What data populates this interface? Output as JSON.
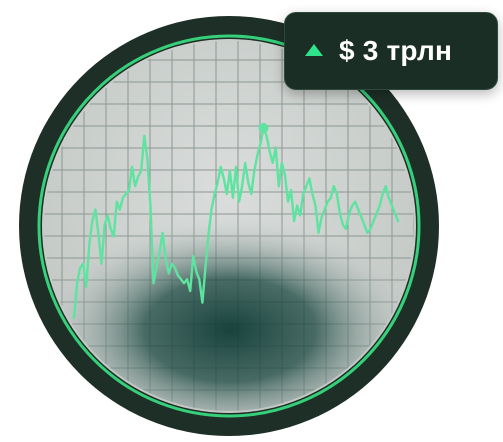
{
  "badge": {
    "value_text": "$ 3 трлн",
    "trend_icon": "triangle-up-icon",
    "trend_color": "#2ee38a"
  },
  "colors": {
    "ring": "#1e2f27",
    "ring_accent": "#36d07a",
    "screen": "#cfd3d1",
    "grid": "#8c9893",
    "line": "#5ee3a0",
    "glow": "#0f3b35"
  },
  "chart_data": {
    "type": "line",
    "title": "",
    "xlabel": "",
    "ylabel": "",
    "grid": true,
    "legend": "none",
    "ylim": [
      0,
      100
    ],
    "series": [
      {
        "values": [
          2,
          20,
          28,
          30,
          18,
          40,
          52,
          58,
          45,
          30,
          50,
          55,
          48,
          44,
          62,
          58,
          64,
          66,
          68,
          80,
          70,
          75,
          78,
          96,
          84,
          60,
          20,
          28,
          36,
          46,
          32,
          25,
          30,
          28,
          24,
          22,
          20,
          22,
          16,
          34,
          26,
          22,
          10,
          28,
          45,
          58,
          66,
          72,
          80,
          74,
          66,
          78,
          64,
          80,
          62,
          70,
          82,
          72,
          66,
          78,
          86,
          92,
          100,
          96,
          88,
          82,
          90,
          70,
          82,
          76,
          62,
          68,
          52,
          60,
          55,
          66,
          70,
          74,
          66,
          60,
          46,
          54,
          58,
          62,
          64,
          70,
          66,
          56,
          50,
          48,
          56,
          60,
          62,
          58,
          54,
          50,
          46,
          48,
          52,
          56,
          60,
          66,
          70,
          64,
          60,
          56,
          52
        ],
        "marker_index": 62
      }
    ]
  }
}
